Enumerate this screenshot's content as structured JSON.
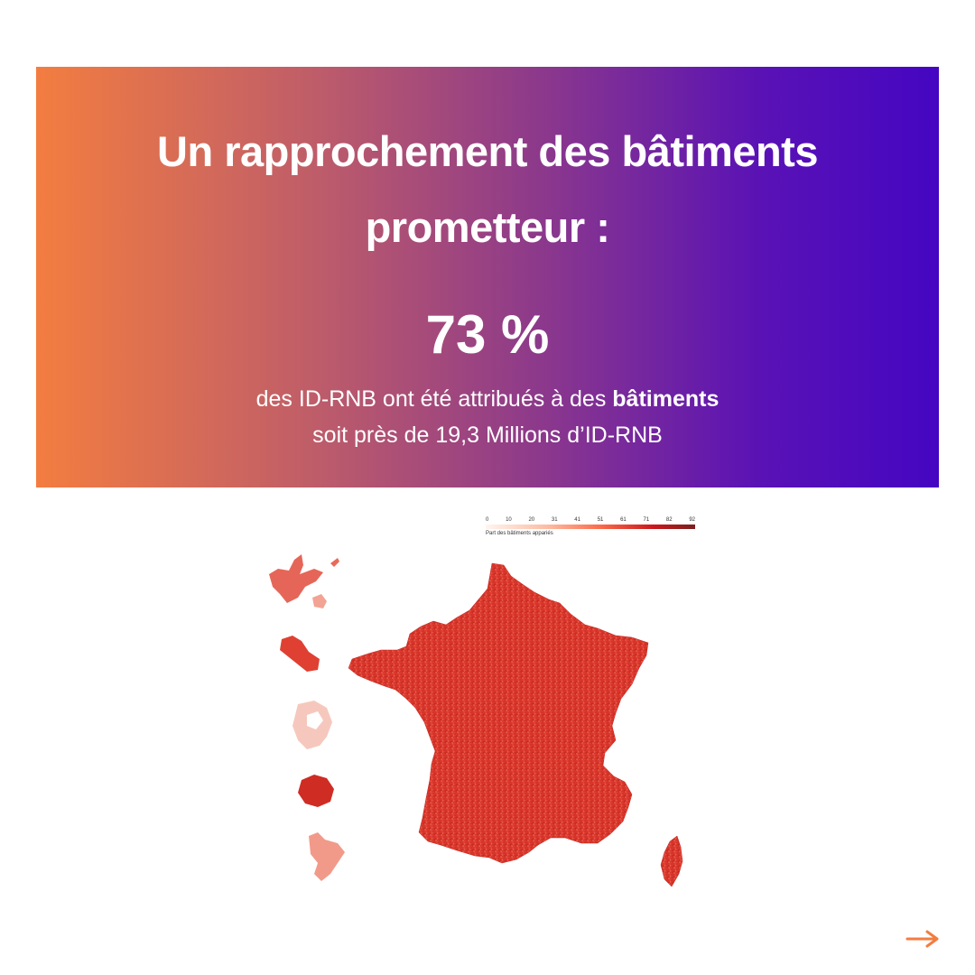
{
  "header": {
    "title_line1": "Un rapprochement des bâtiments",
    "title_line2": "prometteur :",
    "stat_value": "73 %",
    "desc_line1_prefix": "des ID-RNB ont été attribués à des ",
    "desc_line1_bold": "bâtiments",
    "desc_line2": "soit près de 19,3 Millions d’ID-RNB"
  },
  "legend": {
    "ticks": [
      "0",
      "10",
      "20",
      "31",
      "41",
      "51",
      "61",
      "71",
      "82",
      "92"
    ],
    "title": "Part des bâtiments appariés"
  },
  "colors": {
    "gradient_start": "#f37d40",
    "gradient_end": "#4506c2",
    "map_fill": "#e03a2e",
    "map_dark": "#b51f1b",
    "arrow": "#f37d40"
  },
  "icons": {
    "next": "arrow-right-icon"
  }
}
